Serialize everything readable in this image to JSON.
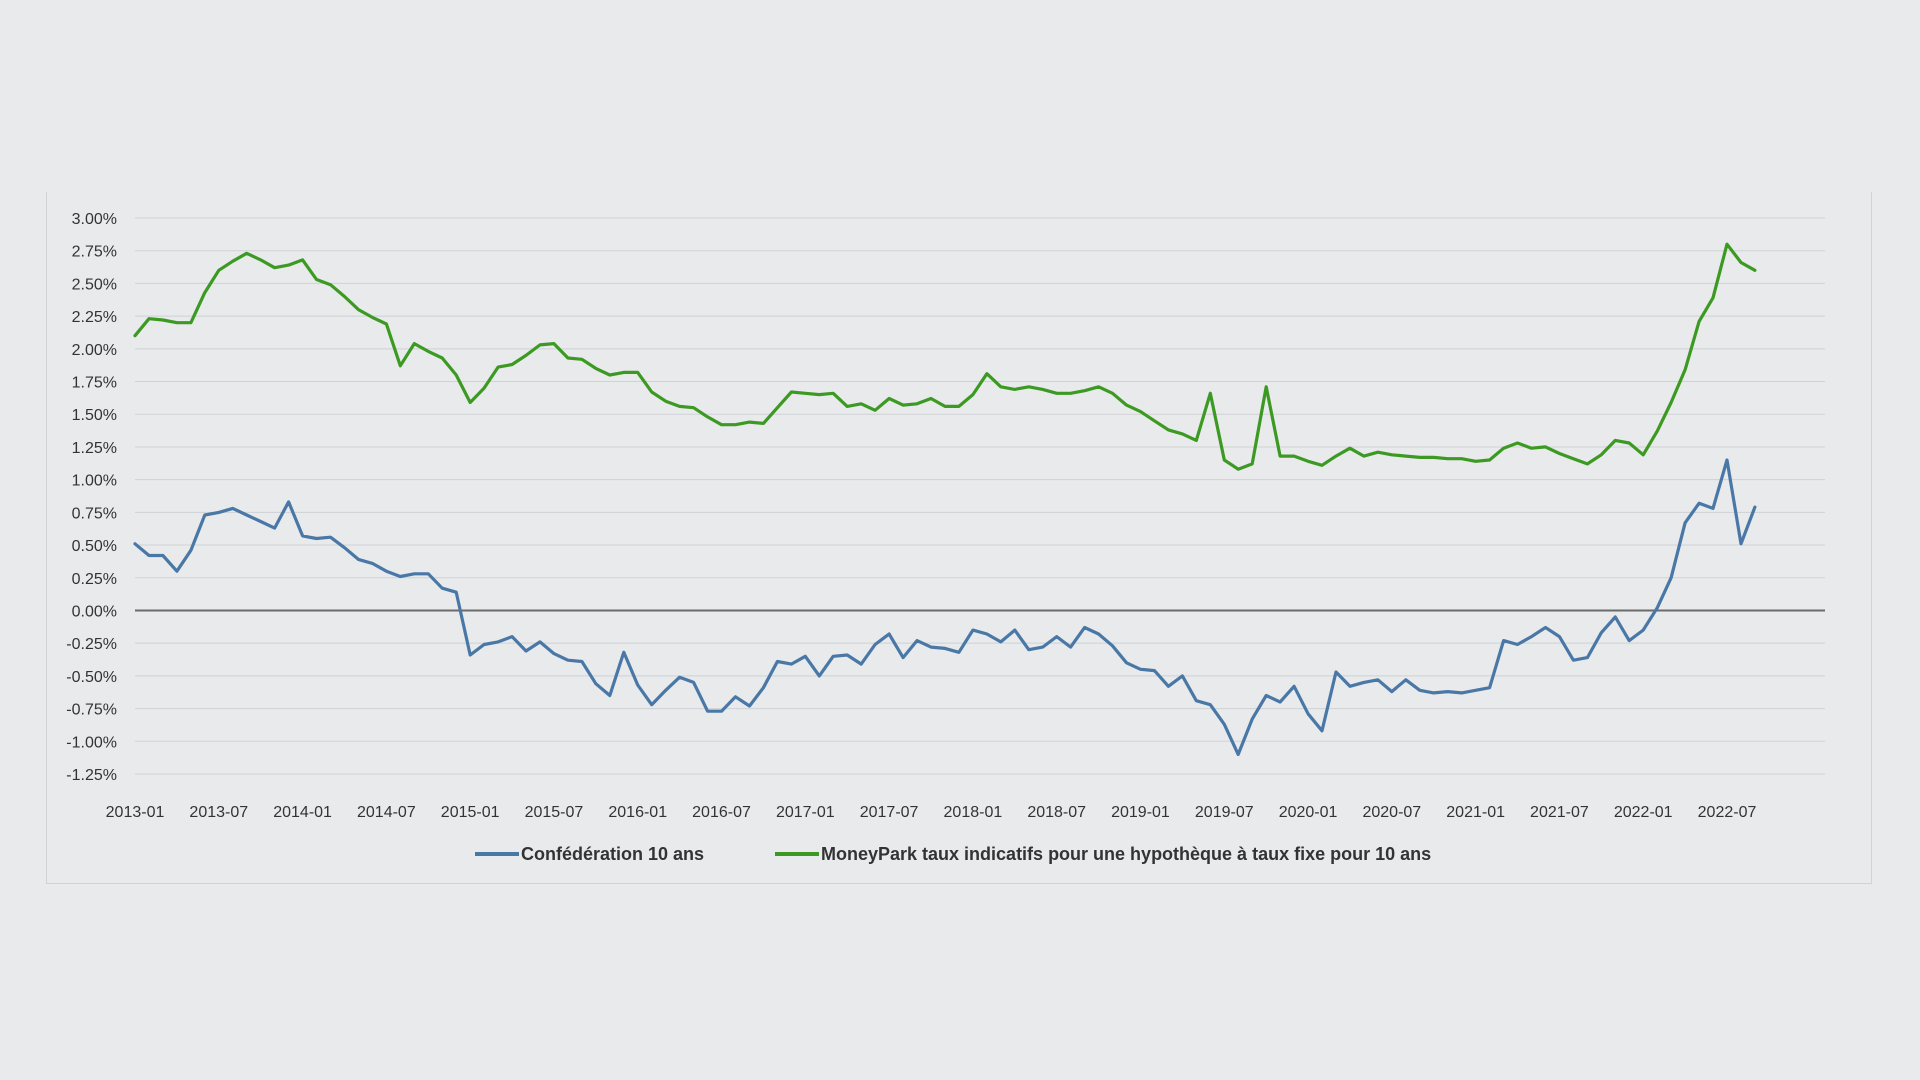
{
  "chart_data": {
    "type": "line",
    "title": "",
    "xlabel": "",
    "ylabel": "",
    "ylim": [
      -1.25,
      3.0
    ],
    "grid": true,
    "legend_position": "bottom",
    "y_ticks": [
      "3.00%",
      "2.75%",
      "2.50%",
      "2.25%",
      "2.00%",
      "1.75%",
      "1.50%",
      "1.25%",
      "1.00%",
      "0.75%",
      "0.50%",
      "0.25%",
      "0.00%",
      "-0.25%",
      "-0.50%",
      "-0.75%",
      "-1.00%",
      "-1.25%"
    ],
    "y_tick_values": [
      3.0,
      2.75,
      2.5,
      2.25,
      2.0,
      1.75,
      1.5,
      1.25,
      1.0,
      0.75,
      0.5,
      0.25,
      0.0,
      -0.25,
      -0.5,
      -0.75,
      -1.0,
      -1.25
    ],
    "x_ticks": [
      "2013-01",
      "2013-07",
      "2014-01",
      "2014-07",
      "2015-01",
      "2015-07",
      "2016-01",
      "2016-07",
      "2017-01",
      "2017-07",
      "2018-01",
      "2018-07",
      "2019-01",
      "2019-07",
      "2020-01",
      "2020-07",
      "2021-01",
      "2021-07",
      "2022-01",
      "2022-07"
    ],
    "x_start": "2013-01",
    "x_end": "2022-10",
    "series": [
      {
        "name": "Confédération 10 ans",
        "color": "#4a78a6",
        "values": [
          0.51,
          0.42,
          0.42,
          0.3,
          0.46,
          0.73,
          0.75,
          0.78,
          0.73,
          0.68,
          0.63,
          0.83,
          0.57,
          0.55,
          0.56,
          0.48,
          0.39,
          0.36,
          0.3,
          0.26,
          0.28,
          0.28,
          0.17,
          0.14,
          -0.34,
          -0.26,
          -0.24,
          -0.2,
          -0.31,
          -0.24,
          -0.33,
          -0.38,
          -0.39,
          -0.56,
          -0.65,
          -0.32,
          -0.57,
          -0.72,
          -0.61,
          -0.51,
          -0.55,
          -0.77,
          -0.77,
          -0.66,
          -0.73,
          -0.59,
          -0.39,
          -0.41,
          -0.35,
          -0.5,
          -0.35,
          -0.34,
          -0.41,
          -0.26,
          -0.18,
          -0.36,
          -0.23,
          -0.28,
          -0.29,
          -0.32,
          -0.15,
          -0.18,
          -0.24,
          -0.15,
          -0.3,
          -0.28,
          -0.2,
          -0.28,
          -0.13,
          -0.18,
          -0.27,
          -0.4,
          -0.45,
          -0.46,
          -0.58,
          -0.5,
          -0.69,
          -0.72,
          -0.87,
          -1.1,
          -0.83,
          -0.65,
          -0.7,
          -0.58,
          -0.79,
          -0.92,
          -0.47,
          -0.58,
          -0.55,
          -0.53,
          -0.62,
          -0.53,
          -0.61,
          -0.63,
          -0.62,
          -0.63,
          -0.61,
          -0.59,
          -0.23,
          -0.26,
          -0.2,
          -0.13,
          -0.2,
          -0.38,
          -0.36,
          -0.17,
          -0.05,
          -0.23,
          -0.15,
          0.02,
          0.25,
          0.67,
          0.82,
          0.78,
          1.15,
          0.51,
          0.79
        ]
      },
      {
        "name": "MoneyPark taux indicatifs pour une hypothèque à taux fixe pour 10 ans",
        "color": "#3c9a22",
        "values": [
          2.1,
          2.23,
          2.22,
          2.2,
          2.2,
          2.43,
          2.6,
          2.67,
          2.73,
          2.68,
          2.62,
          2.64,
          2.68,
          2.53,
          2.49,
          2.4,
          2.3,
          2.24,
          2.19,
          1.87,
          2.04,
          1.98,
          1.93,
          1.8,
          1.59,
          1.7,
          1.86,
          1.88,
          1.95,
          2.03,
          2.04,
          1.93,
          1.92,
          1.85,
          1.8,
          1.82,
          1.82,
          1.67,
          1.6,
          1.56,
          1.55,
          1.48,
          1.42,
          1.42,
          1.44,
          1.43,
          1.55,
          1.67,
          1.66,
          1.65,
          1.66,
          1.56,
          1.58,
          1.53,
          1.62,
          1.57,
          1.58,
          1.62,
          1.56,
          1.56,
          1.65,
          1.81,
          1.71,
          1.69,
          1.71,
          1.69,
          1.66,
          1.66,
          1.68,
          1.71,
          1.66,
          1.57,
          1.52,
          1.45,
          1.38,
          1.35,
          1.3,
          1.66,
          1.15,
          1.08,
          1.12,
          1.71,
          1.18,
          1.18,
          1.14,
          1.11,
          1.18,
          1.24,
          1.18,
          1.21,
          1.19,
          1.18,
          1.17,
          1.17,
          1.16,
          1.16,
          1.14,
          1.15,
          1.24,
          1.28,
          1.24,
          1.25,
          1.2,
          1.16,
          1.12,
          1.19,
          1.3,
          1.28,
          1.19,
          1.37,
          1.59,
          1.84,
          2.21,
          2.39,
          2.8,
          2.66,
          2.6
        ]
      }
    ]
  }
}
